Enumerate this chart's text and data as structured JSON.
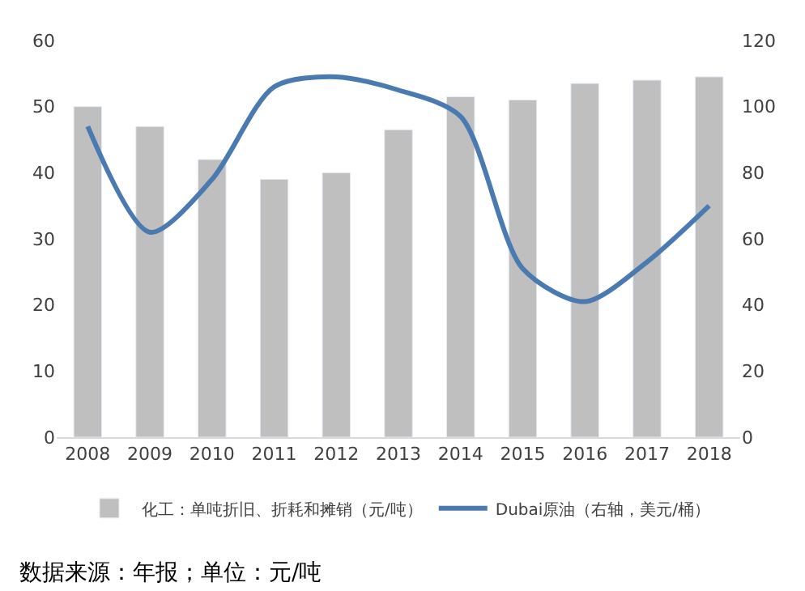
{
  "chart_data": {
    "type": "bar",
    "categories": [
      "2008",
      "2009",
      "2010",
      "2011",
      "2012",
      "2013",
      "2014",
      "2015",
      "2016",
      "2017",
      "2018"
    ],
    "series": [
      {
        "name": "化工：单吨折旧、折耗和摊销（元/吨）",
        "color": "#bfbfbf",
        "values": [
          50,
          47,
          42,
          39,
          40,
          46.5,
          51.5,
          51,
          53.5,
          54,
          54.5
        ]
      },
      {
        "name": "Dubai原油（右轴，美元/桶）",
        "color": "#4a7ab0",
        "type": "line",
        "axis": "y2",
        "values": [
          94,
          62,
          78,
          106,
          109,
          105,
          97,
          51,
          41,
          53,
          70
        ]
      }
    ],
    "ylim": [
      0,
      60
    ],
    "yticks": [
      0,
      10,
      20,
      30,
      40,
      50,
      60
    ],
    "y2lim": [
      0,
      120
    ],
    "y2ticks": [
      0,
      20,
      40,
      60,
      80,
      100,
      120
    ],
    "legend": "bottom",
    "marker": "none",
    "line_style": "solid",
    "annotations": [
      "数据来源：年报；单位：元/吨"
    ]
  }
}
